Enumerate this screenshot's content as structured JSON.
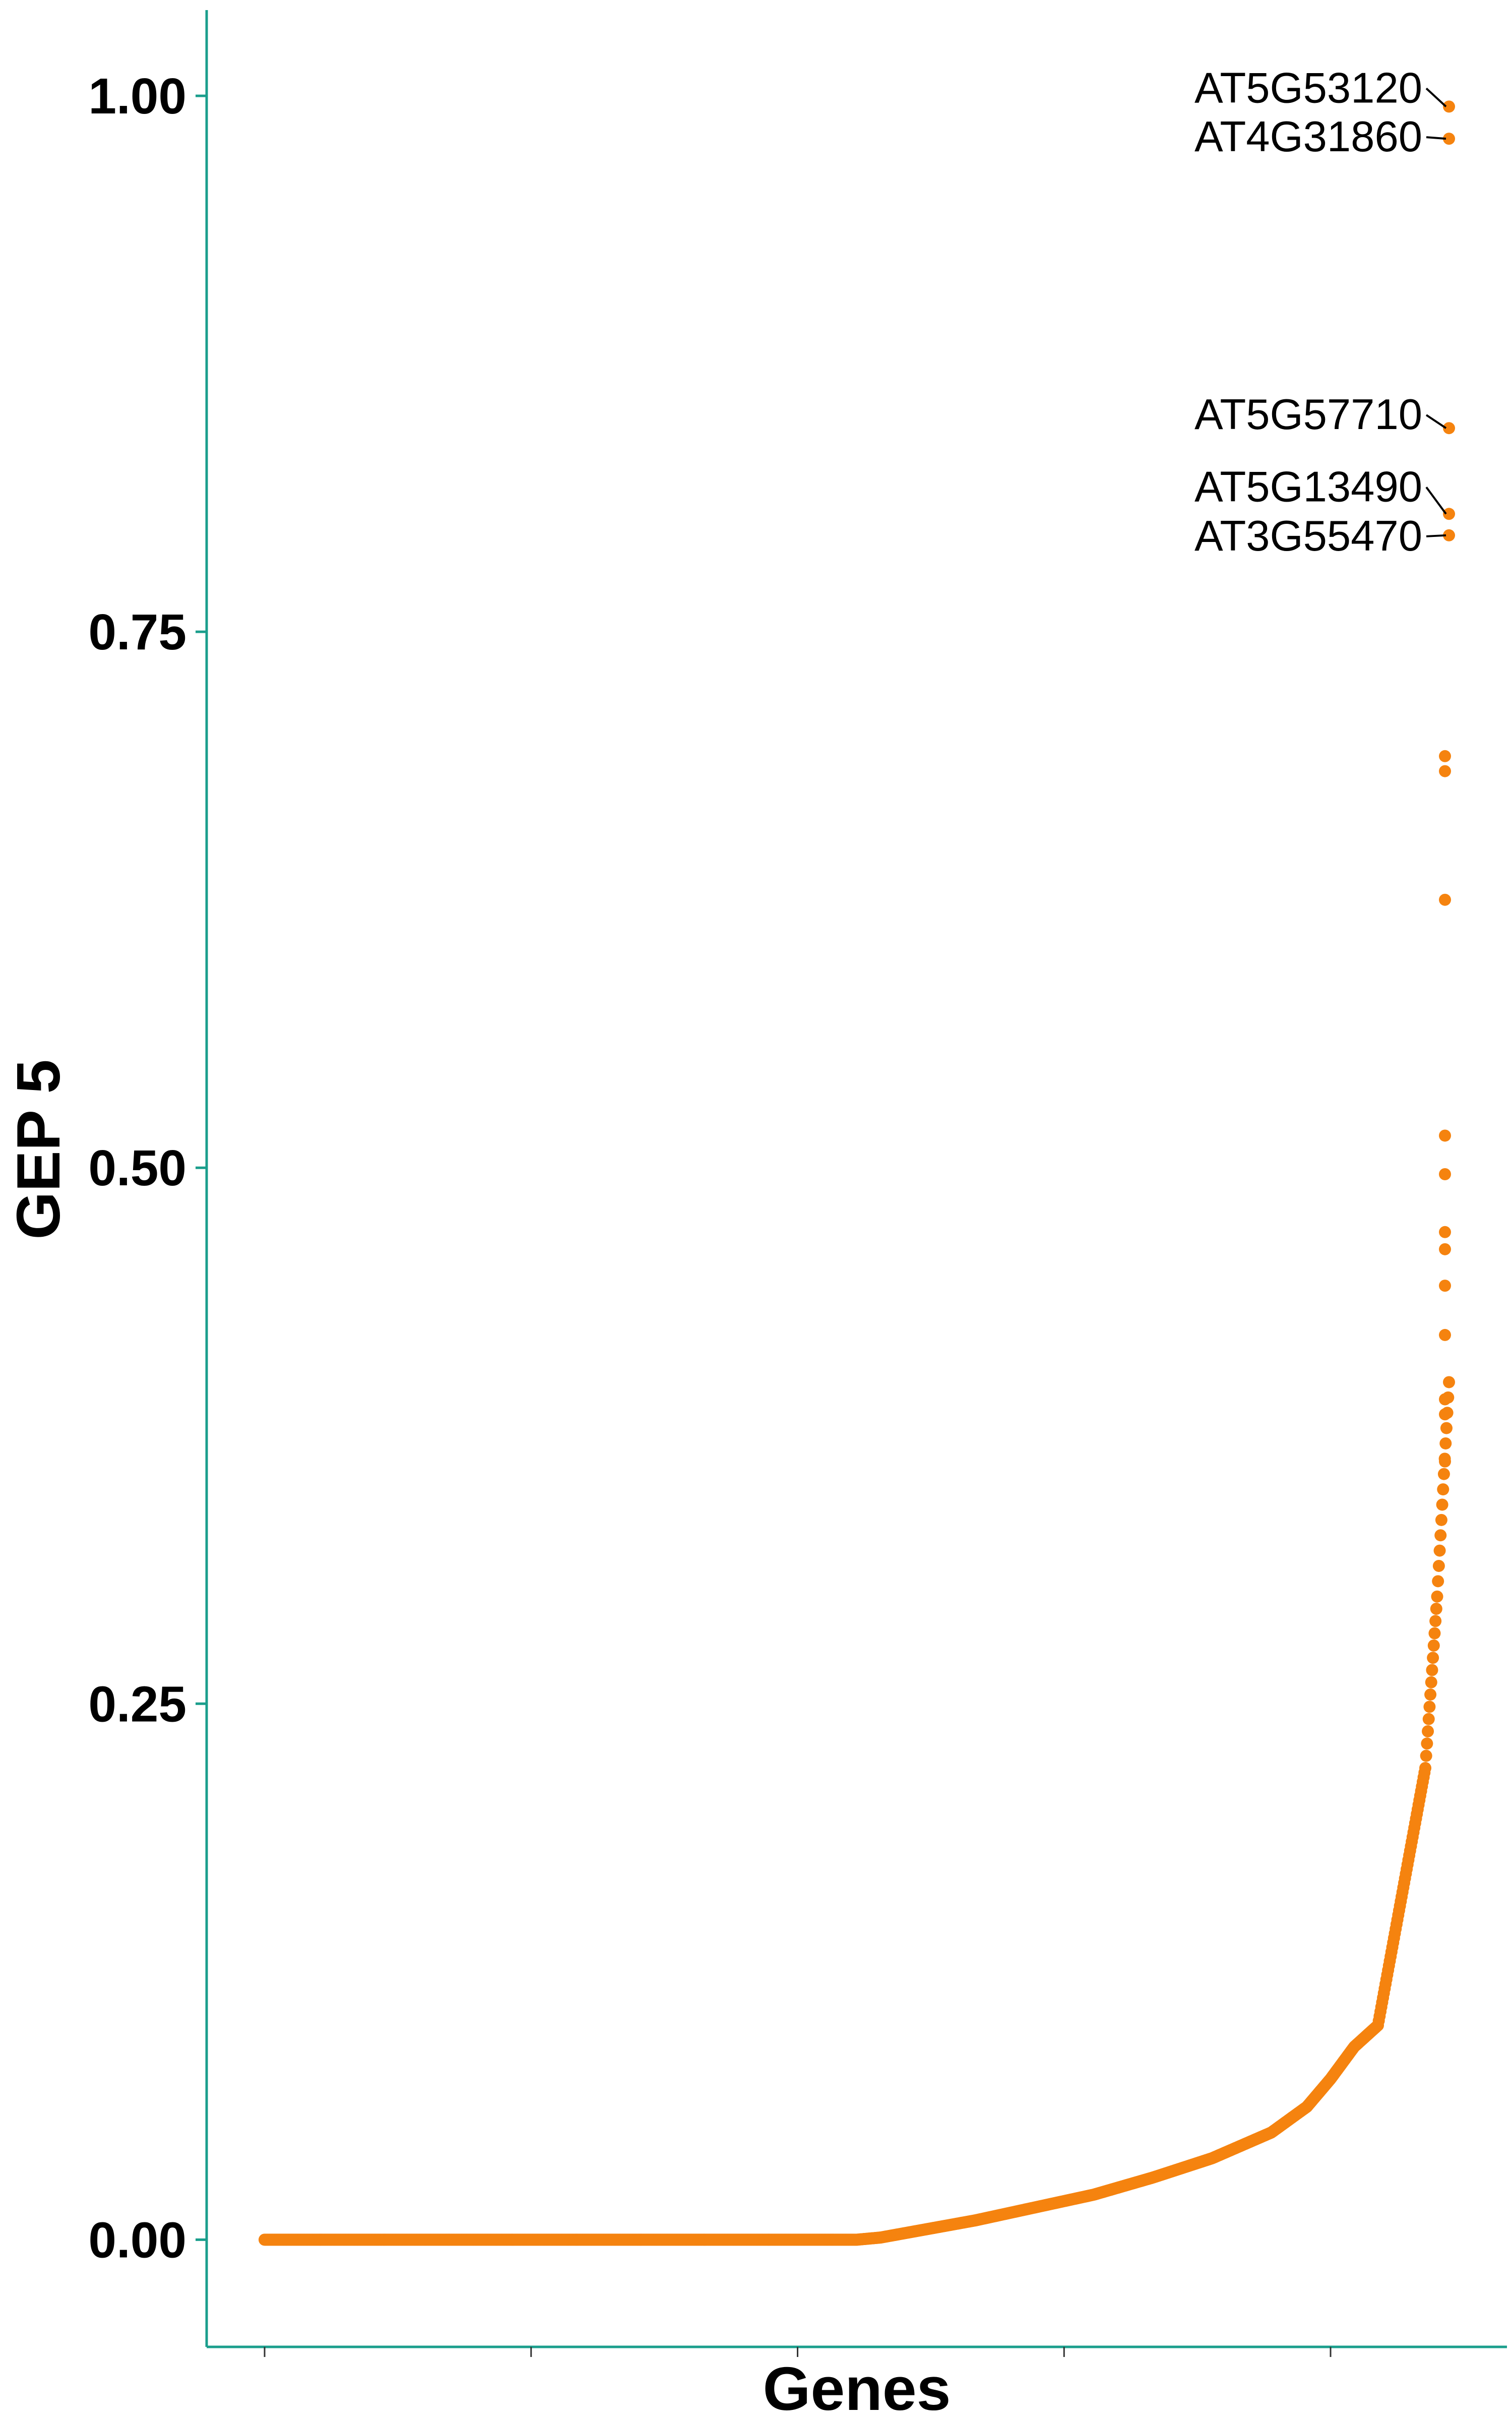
{
  "chart_data": {
    "type": "scatter",
    "title": "",
    "xlabel": "Genes",
    "ylabel": "GEP 5",
    "ylim": [
      -0.05,
      1.04
    ],
    "y_ticks": [
      {
        "value": 0.0,
        "label": "0.00"
      },
      {
        "value": 0.25,
        "label": "0.25"
      },
      {
        "value": 0.5,
        "label": "0.50"
      },
      {
        "value": 0.75,
        "label": "0.75"
      },
      {
        "value": 1.0,
        "label": "1.00"
      }
    ],
    "x_ticks_count": 5,
    "grid": false,
    "legend": "none",
    "point_color": "#F5830F",
    "axis_color": "#1A9E8C",
    "curve_profile": [
      [
        0.0,
        0.0
      ],
      [
        0.5,
        0.0
      ],
      [
        0.52,
        0.001
      ],
      [
        0.55,
        0.004
      ],
      [
        0.6,
        0.009
      ],
      [
        0.65,
        0.015
      ],
      [
        0.7,
        0.021
      ],
      [
        0.75,
        0.029
      ],
      [
        0.8,
        0.038
      ],
      [
        0.85,
        0.05
      ],
      [
        0.88,
        0.062
      ],
      [
        0.9,
        0.075
      ],
      [
        0.92,
        0.09
      ],
      [
        0.94,
        0.1
      ],
      [
        0.95,
        0.13
      ],
      [
        0.96,
        0.16
      ],
      [
        0.97,
        0.19
      ],
      [
        0.98,
        0.22
      ],
      [
        0.985,
        0.26
      ],
      [
        0.99,
        0.3
      ],
      [
        0.995,
        0.35
      ],
      [
        1.0,
        0.4
      ]
    ],
    "top_points": [
      {
        "gene": "",
        "x": 1.0,
        "y": 0.515
      },
      {
        "gene": "",
        "x": 1.0,
        "y": 0.497
      },
      {
        "gene": "",
        "x": 1.0,
        "y": 0.47
      },
      {
        "gene": "",
        "x": 1.0,
        "y": 0.462
      },
      {
        "gene": "",
        "x": 1.0,
        "y": 0.445
      },
      {
        "gene": "",
        "x": 1.0,
        "y": 0.422
      },
      {
        "gene": "",
        "x": 1.0,
        "y": 0.392
      },
      {
        "gene": "",
        "x": 1.0,
        "y": 0.385
      },
      {
        "gene": "",
        "x": 1.0,
        "y": 0.363
      },
      {
        "gene": "",
        "x": 1.0,
        "y": 0.625
      },
      {
        "gene": "",
        "x": 1.0,
        "y": 0.685
      },
      {
        "gene": "",
        "x": 1.0,
        "y": 0.692
      },
      {
        "gene": "AT3G55470",
        "x": 1.0,
        "y": 0.795
      },
      {
        "gene": "AT5G13490",
        "x": 1.0,
        "y": 0.805
      },
      {
        "gene": "AT5G57710",
        "x": 1.0,
        "y": 0.845
      },
      {
        "gene": "AT4G31860",
        "x": 1.0,
        "y": 0.98
      },
      {
        "gene": "AT5G53120",
        "x": 1.0,
        "y": 0.995
      }
    ]
  }
}
